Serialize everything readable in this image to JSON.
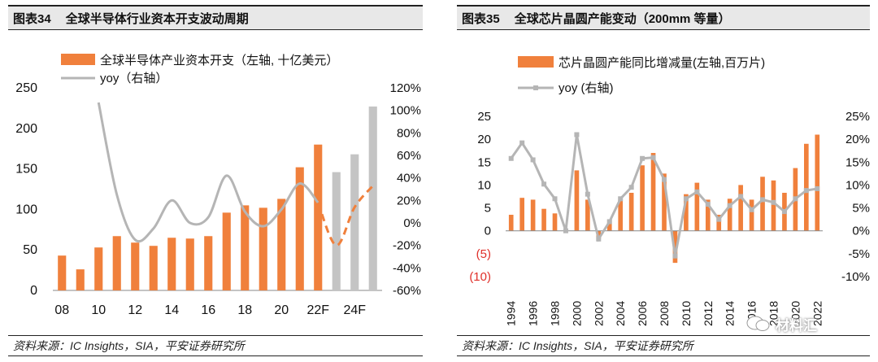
{
  "left": {
    "fig_no": "图表34",
    "title": "全球半导体行业资本开支波动周期",
    "source": "资料来源：IC Insights，SIA，平安证券研究所"
  },
  "right": {
    "fig_no": "图表35",
    "title": "全球芯片晶圆产能变动（200mm 等量）",
    "source": "资料来源：IC Insights，SIA，平安证券研究所"
  },
  "watermark": {
    "text": "材料汇"
  },
  "colors": {
    "bar": "#f0803c",
    "forecast_bar": "#c4c4c4",
    "line": "#b5b5b5",
    "forecast_line": "#f0803c",
    "negative_label": "#e0302a"
  },
  "chart_data": [
    {
      "type": "bar",
      "title": "",
      "legend_position": "top",
      "x": [
        "08",
        "09",
        "10",
        "11",
        "12",
        "13",
        "14",
        "15",
        "16",
        "17",
        "18",
        "19",
        "20",
        "21",
        "22F",
        "23F",
        "24F",
        "25F"
      ],
      "x_tick_labels": [
        "08",
        "10",
        "12",
        "14",
        "16",
        "18",
        "20",
        "22F",
        "24F"
      ],
      "series": [
        {
          "name": "全球半导体产业资本开支（左轴, 十亿美元）",
          "type": "bar",
          "axis": "left",
          "values": [
            43,
            26,
            53,
            67,
            59,
            55,
            65,
            64,
            67,
            96,
            105,
            102,
            113,
            152,
            180,
            146,
            168,
            227
          ],
          "forecast_from_index": 15
        },
        {
          "name": "yoy（右轴）",
          "type": "line",
          "axis": "right",
          "smooth": true,
          "values": [
            null,
            null,
            107,
            25,
            -15,
            -5,
            20,
            0,
            5,
            42,
            10,
            -3,
            12,
            35,
            18,
            -20,
            14,
            33
          ],
          "forecast_from_index": 14
        }
      ],
      "y_left": {
        "lim": [
          0,
          250
        ],
        "ticks": [
          "0",
          "50",
          "100",
          "150",
          "200",
          "250"
        ]
      },
      "y_right": {
        "lim": [
          -60,
          120
        ],
        "ticks": [
          "-60%",
          "-40%",
          "-20%",
          "0%",
          "20%",
          "40%",
          "60%",
          "80%",
          "100%",
          "120%"
        ]
      },
      "grid": false
    },
    {
      "type": "bar",
      "title": "",
      "legend_position": "top",
      "x": [
        "1994",
        "1995",
        "1996",
        "1997",
        "1998",
        "1999",
        "2000",
        "2001",
        "2002",
        "2003",
        "2004",
        "2005",
        "2006",
        "2007",
        "2008",
        "2009",
        "2010",
        "2011",
        "2012",
        "2013",
        "2014",
        "2015",
        "2016",
        "2017",
        "2018",
        "2019",
        "2020",
        "2021",
        "2022"
      ],
      "x_tick_labels": [
        "1994",
        "1996",
        "1998",
        "2000",
        "2002",
        "2004",
        "2006",
        "2008",
        "2010",
        "2012",
        "2014",
        "2016",
        "2018",
        "2020",
        "2022"
      ],
      "series": [
        {
          "name": "芯片晶圆产能同比增减量(左轴,百万片)",
          "type": "bar",
          "axis": "left",
          "values": [
            3.5,
            7.2,
            6.8,
            4.8,
            3.8,
            0,
            13.2,
            6.8,
            -1.8,
            2.5,
            6.8,
            8.3,
            14.3,
            17.0,
            12.5,
            -7.0,
            8.0,
            10.5,
            6.8,
            3.5,
            7.0,
            10.0,
            6.8,
            11.8,
            11.0,
            8.3,
            13.7,
            19.0,
            21.0
          ]
        },
        {
          "name": "yoy (右轴)",
          "type": "line",
          "axis": "right",
          "marker": "square",
          "values": [
            15.8,
            19.2,
            15.5,
            10.2,
            7.0,
            0,
            21.0,
            8.0,
            -1.8,
            2.0,
            7.0,
            9.5,
            15.8,
            16.0,
            11.2,
            -5.5,
            7.0,
            8.5,
            5.8,
            2.5,
            5.5,
            7.5,
            4.6,
            6.8,
            6.2,
            4.2,
            7.0,
            8.8,
            9.2
          ]
        }
      ],
      "y_left": {
        "lim": [
          -10,
          25
        ],
        "ticks": [
          "(10)",
          "(5)",
          "0",
          "5",
          "10",
          "15",
          "20",
          "25"
        ]
      },
      "y_right": {
        "lim": [
          -10,
          25
        ],
        "ticks": [
          "-10%",
          "-5%",
          "0%",
          "5%",
          "10%",
          "15%",
          "20%",
          "25%"
        ]
      },
      "grid": false
    }
  ]
}
